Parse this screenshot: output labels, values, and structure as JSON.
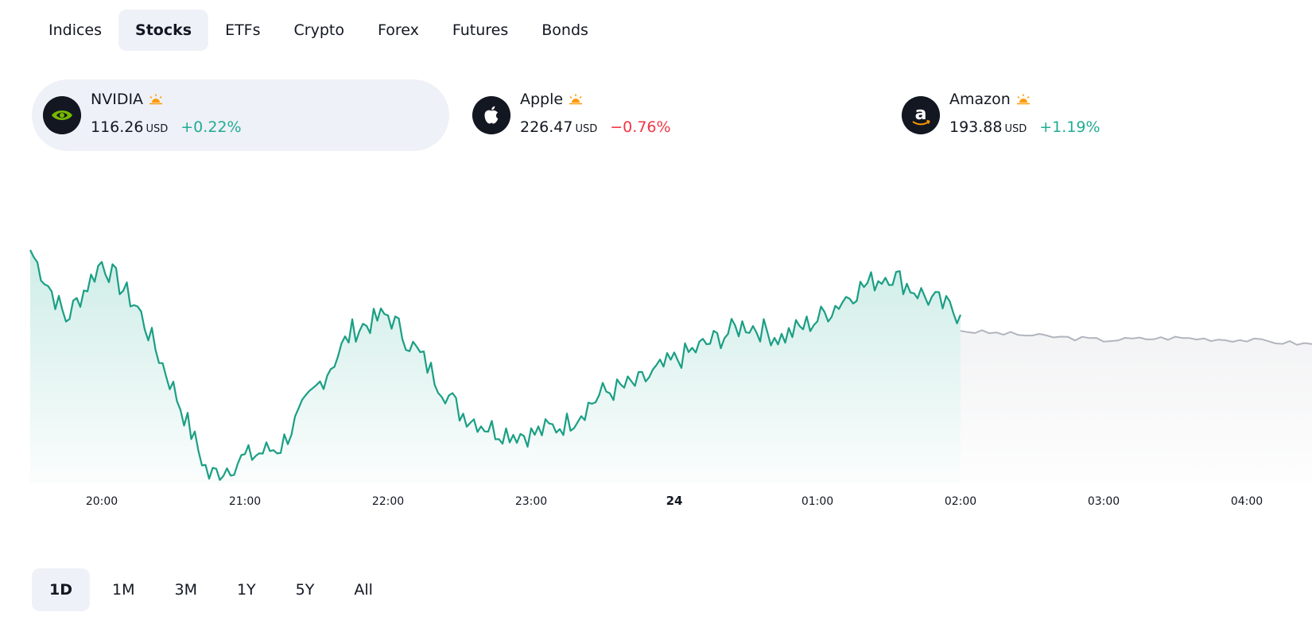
{
  "market_tabs": [
    "Indices",
    "Stocks",
    "ETFs",
    "Crypto",
    "Forex",
    "Futures",
    "Bonds"
  ],
  "active_tab": "Stocks",
  "tickers": [
    {
      "name": "NVIDIA",
      "price": "116.26",
      "currency": "USD",
      "change": "+0.22%",
      "direction": "up",
      "logo": "nvidia-logo",
      "session_icon": "sun-icon",
      "selected": true
    },
    {
      "name": "Apple",
      "price": "226.47",
      "currency": "USD",
      "change": "−0.76%",
      "direction": "down",
      "logo": "apple-logo",
      "session_icon": "sun-icon",
      "selected": false
    },
    {
      "name": "Amazon",
      "price": "193.88",
      "currency": "USD",
      "change": "+1.19%",
      "direction": "up",
      "logo": "amazon-logo",
      "session_icon": "sun-icon",
      "selected": false
    }
  ],
  "colors": {
    "up": "#22ab94",
    "down": "#f23645",
    "line": "#1a9f84",
    "projection": "#b2b5be",
    "selected_bg": "#eef1f7"
  },
  "chart_data": {
    "type": "line",
    "series": [
      {
        "x": [
          "19:30",
          "19:45",
          "20:00",
          "20:15",
          "20:30",
          "20:45",
          "21:00",
          "21:15",
          "21:30",
          "21:45",
          "22:00",
          "22:15",
          "22:30",
          "22:45",
          "23:00",
          "23:15",
          "23:30",
          "23:45",
          "00:00",
          "00:15",
          "00:30",
          "00:45",
          "01:00",
          "01:15",
          "01:30",
          "01:45",
          "02:00"
        ],
        "values": [
          116.9,
          116.6,
          116.85,
          116.65,
          116.3,
          115.92,
          116.0,
          116.05,
          116.3,
          116.55,
          116.62,
          116.42,
          116.2,
          116.12,
          116.1,
          116.15,
          116.28,
          116.32,
          116.42,
          116.5,
          116.58,
          116.52,
          116.6,
          116.72,
          116.8,
          116.7,
          116.62
        ]
      },
      {
        "x": [
          "02:00",
          "02:30",
          "03:00",
          "03:30",
          "04:00",
          "04:30"
        ],
        "values": [
          116.55,
          116.53,
          116.51,
          116.52,
          116.51,
          116.49
        ]
      }
    ],
    "x_tick_labels": [
      "20:00",
      "21:00",
      "22:00",
      "23:00",
      "24",
      "01:00",
      "02:00",
      "03:00",
      "04:00"
    ],
    "ylim": [
      115.9,
      116.95
    ],
    "grid": false,
    "fill": "gradient-area"
  },
  "ranges": [
    "1D",
    "1M",
    "3M",
    "1Y",
    "5Y",
    "All"
  ],
  "active_range": "1D"
}
